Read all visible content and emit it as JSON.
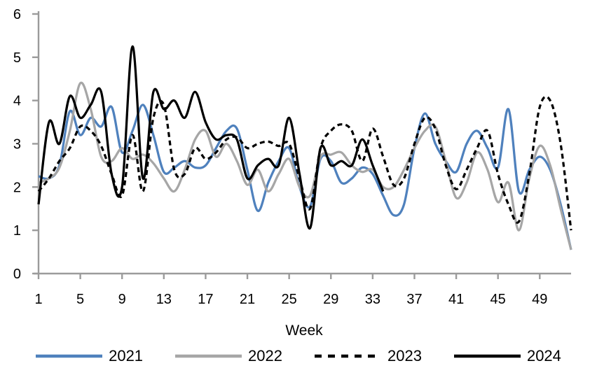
{
  "chart_data": {
    "type": "line",
    "title": "",
    "xlabel": "Week",
    "ylabel": "",
    "grid": false,
    "legend_position": "bottom",
    "xlim": [
      1,
      52
    ],
    "ylim": [
      0,
      6
    ],
    "xticks": [
      1,
      5,
      9,
      13,
      17,
      21,
      25,
      29,
      33,
      37,
      41,
      45,
      49
    ],
    "yticks": [
      0,
      1,
      2,
      3,
      4,
      5,
      6
    ],
    "weeks": [
      1,
      2,
      3,
      4,
      5,
      6,
      7,
      8,
      9,
      10,
      11,
      12,
      13,
      14,
      15,
      16,
      17,
      18,
      19,
      20,
      21,
      22,
      23,
      24,
      25,
      26,
      27,
      28,
      29,
      30,
      31,
      32,
      33,
      34,
      35,
      36,
      37,
      38,
      39,
      40,
      41,
      42,
      43,
      44,
      45,
      46,
      47,
      48,
      49,
      50,
      51,
      52
    ],
    "series": [
      {
        "name": "2021",
        "color": "#4F81BD",
        "style": "solid",
        "values": [
          2.25,
          2.2,
          2.5,
          3.75,
          3.2,
          3.6,
          3.4,
          3.85,
          2.8,
          3.3,
          3.9,
          3.2,
          2.35,
          2.45,
          2.6,
          2.45,
          2.5,
          2.9,
          3.3,
          3.35,
          2.4,
          1.45,
          2.1,
          2.6,
          2.9,
          2.0,
          1.55,
          2.65,
          2.6,
          2.1,
          2.2,
          2.45,
          2.3,
          1.8,
          1.35,
          1.6,
          2.9,
          3.7,
          3.0,
          2.6,
          2.35,
          3.0,
          3.3,
          2.9,
          2.45,
          3.8,
          1.9,
          2.4,
          2.7,
          2.4,
          1.6,
          0.55
        ]
      },
      {
        "name": "2022",
        "color": "#A6A6A6",
        "style": "solid",
        "values": [
          2.1,
          2.2,
          2.45,
          3.3,
          4.4,
          3.8,
          2.7,
          2.6,
          2.9,
          2.65,
          2.75,
          2.55,
          2.2,
          1.9,
          2.4,
          3.1,
          3.3,
          2.7,
          3.0,
          2.6,
          2.05,
          2.4,
          1.9,
          2.3,
          2.65,
          2.0,
          1.8,
          2.7,
          2.75,
          2.8,
          2.5,
          2.35,
          2.4,
          2.0,
          2.0,
          2.4,
          2.9,
          3.3,
          3.4,
          2.6,
          1.75,
          2.1,
          2.8,
          2.4,
          1.65,
          2.1,
          1.0,
          2.2,
          2.95,
          2.5,
          1.5,
          0.55
        ]
      },
      {
        "name": "2023",
        "color": "#000000",
        "style": "dashed",
        "values": [
          1.9,
          2.2,
          2.6,
          2.9,
          3.4,
          3.3,
          2.95,
          2.3,
          1.8,
          3.2,
          1.9,
          3.6,
          3.9,
          2.4,
          2.3,
          2.9,
          2.65,
          2.8,
          3.1,
          3.15,
          2.9,
          3.0,
          3.05,
          2.95,
          3.0,
          2.2,
          1.5,
          2.9,
          3.3,
          3.45,
          3.3,
          2.6,
          3.35,
          2.7,
          2.05,
          2.2,
          3.0,
          3.6,
          3.35,
          2.5,
          1.95,
          2.4,
          2.9,
          3.3,
          2.3,
          1.6,
          1.2,
          2.3,
          3.85,
          4.0,
          3.0,
          1.0
        ]
      },
      {
        "name": "2024",
        "color": "#000000",
        "style": "solid",
        "values": [
          1.6,
          3.5,
          3.0,
          4.1,
          3.6,
          3.9,
          4.2,
          2.3,
          2.0,
          5.25,
          2.2,
          4.2,
          3.8,
          4.0,
          3.6,
          4.2,
          3.5,
          3.1,
          3.2,
          3.1,
          2.2,
          2.5,
          2.65,
          2.5,
          3.6,
          2.3,
          1.05,
          2.9,
          2.5,
          2.6,
          2.5,
          3.1,
          2.5,
          1.9
        ]
      }
    ]
  },
  "colors": {
    "axis": "#9b9b9b",
    "text": "#000000",
    "background": "#ffffff"
  }
}
